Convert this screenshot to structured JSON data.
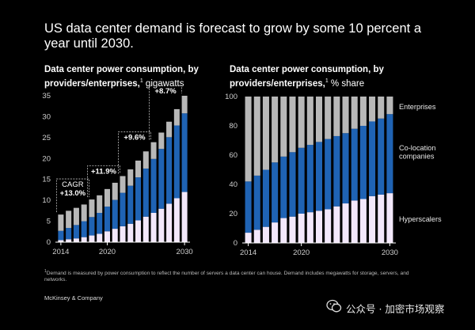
{
  "title": "US data center demand is forecast to grow by some 10 percent a year until 2030.",
  "footnote_marker": "1",
  "footnote": "Demand is measured by power consumption to reflect the number of servers a data center can house. Demand includes megawatts for storage, servers, and networks.",
  "brand": "McKinsey & Company",
  "watermark": "公众号 · 加密市场观察",
  "colors": {
    "hyperscalers": "#f3e8fb",
    "colocation": "#1f63b4",
    "enterprises": "#b8b8b8",
    "text": "#ffffff",
    "axis": "#cfcfcf"
  },
  "chart_data": [
    {
      "type": "bar",
      "stacked": true,
      "title_bold": "Data center power consumption, by providers/enterprises,",
      "title_unit": "gigawatts",
      "x": [
        2014,
        2015,
        2016,
        2017,
        2018,
        2019,
        2020,
        2021,
        2022,
        2023,
        2024,
        2025,
        2026,
        2027,
        2028,
        2029,
        2030
      ],
      "xticks": [
        "2014",
        "2020",
        "2030"
      ],
      "ylim": [
        0,
        35
      ],
      "yticks": [
        "0",
        "5",
        "10",
        "15",
        "20",
        "25",
        "30",
        "35"
      ],
      "series": [
        {
          "name": "Hyperscalers",
          "values": [
            0.5,
            0.7,
            0.9,
            1.2,
            1.6,
            2.0,
            2.6,
            3.2,
            3.8,
            4.4,
            5.2,
            6.1,
            7.0,
            8.0,
            9.2,
            10.5,
            12.0
          ]
        },
        {
          "name": "Co-location companies",
          "values": [
            2.2,
            2.7,
            3.2,
            3.8,
            4.4,
            5.0,
            5.9,
            6.9,
            8.0,
            9.1,
            10.3,
            11.5,
            12.9,
            14.3,
            15.9,
            17.4,
            18.8
          ]
        },
        {
          "name": "Enterprises",
          "values": [
            3.9,
            4.1,
            4.1,
            4.0,
            4.2,
            4.2,
            4.2,
            4.1,
            4.0,
            3.9,
            4.0,
            4.1,
            4.0,
            3.9,
            3.7,
            3.9,
            4.2
          ]
        }
      ],
      "annotations": [
        {
          "label": "CAGR",
          "value": "+13.0%",
          "from": 2014,
          "to": 2018
        },
        {
          "value": "+11.9%",
          "from": 2018,
          "to": 2022
        },
        {
          "value": "+9.6%",
          "from": 2022,
          "to": 2026
        },
        {
          "value": "+8.7%",
          "from": 2026,
          "to": 2030
        }
      ]
    },
    {
      "type": "bar",
      "stacked": true,
      "title_bold": "Data center power consumption, by providers/enterprises,",
      "title_unit": "% share",
      "x": [
        2014,
        2015,
        2016,
        2017,
        2018,
        2019,
        2020,
        2021,
        2022,
        2023,
        2024,
        2025,
        2026,
        2027,
        2028,
        2029,
        2030
      ],
      "xticks": [
        "2014",
        "2020",
        "2030"
      ],
      "ylim": [
        0,
        100
      ],
      "yticks": [
        "0",
        "20",
        "40",
        "60",
        "80",
        "100"
      ],
      "legend_placement": "right",
      "series": [
        {
          "name": "Hyperscalers",
          "label": "Hyperscalers",
          "values": [
            7,
            9,
            11,
            14,
            17,
            18,
            20,
            21,
            22,
            23,
            25,
            27,
            29,
            30,
            32,
            33,
            34
          ]
        },
        {
          "name": "Co-location",
          "label": "Co-location companies",
          "values": [
            35,
            37,
            39,
            41,
            42,
            44,
            45,
            46,
            47,
            48,
            48,
            48,
            49,
            50,
            51,
            52,
            54
          ]
        },
        {
          "name": "Enterprises",
          "label": "Enterprises",
          "values": [
            58,
            54,
            50,
            45,
            41,
            38,
            35,
            33,
            31,
            29,
            27,
            25,
            22,
            20,
            17,
            15,
            12
          ]
        }
      ]
    }
  ]
}
